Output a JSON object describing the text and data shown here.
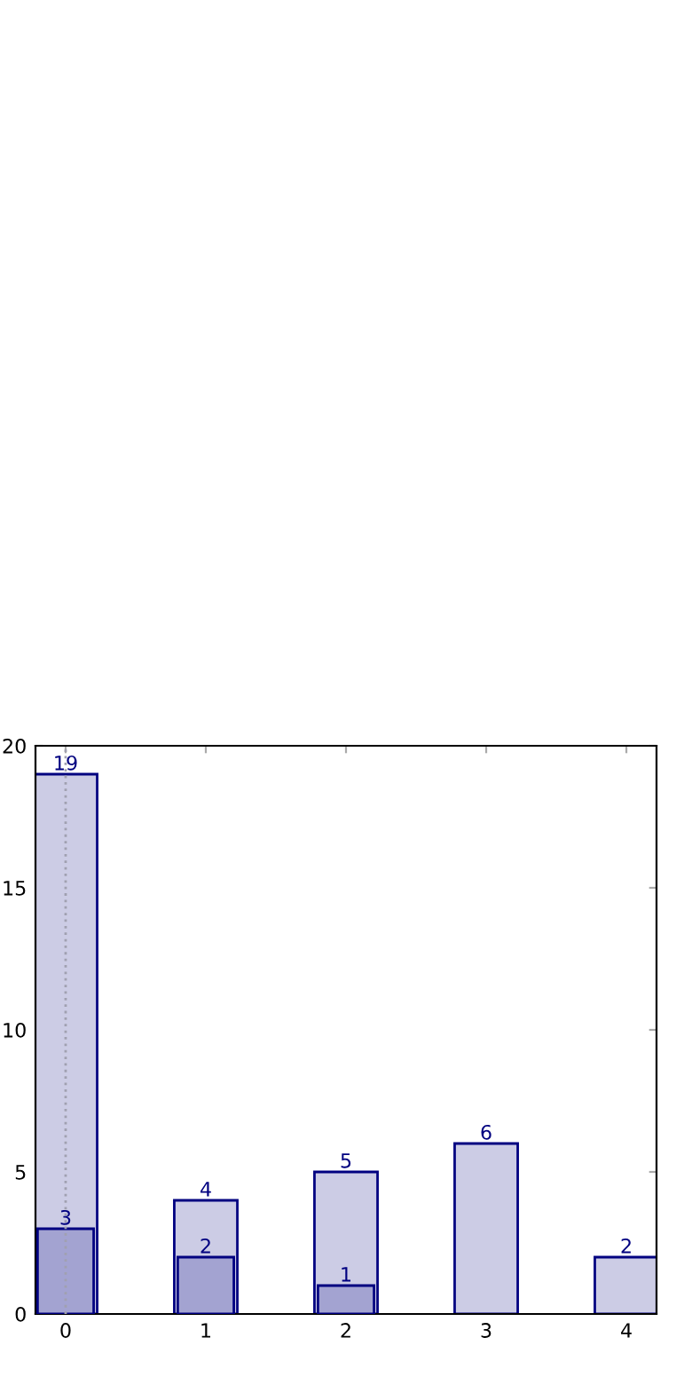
{
  "chart_data": {
    "type": "bar",
    "x": [
      0,
      1,
      2,
      3,
      4
    ],
    "series": [
      {
        "color": "#cccce5",
        "values": [
          19,
          4,
          5,
          6,
          2
        ]
      },
      {
        "color": "#a3a3d1",
        "values": [
          3,
          2,
          1,
          null,
          null
        ]
      }
    ],
    "xlim": [
      -0.215,
      4.215
    ],
    "xticks": [
      0,
      1,
      2,
      3,
      4
    ],
    "ylim": [
      0,
      20
    ],
    "yticks": [
      0,
      5,
      10,
      15,
      20
    ],
    "ref_lines": [
      {
        "axis": "x",
        "value": 0,
        "color": "#a0a0b0",
        "line_style": "dotted"
      }
    ],
    "data_labels": true,
    "grid": false,
    "legend": false
  }
}
